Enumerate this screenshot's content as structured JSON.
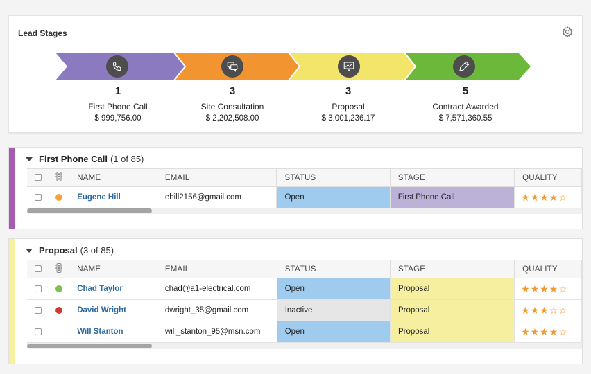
{
  "lead_stages": {
    "title": "Lead Stages",
    "stages": [
      {
        "count": "1",
        "name": "First Phone Call",
        "amount": "$ 999,756.00",
        "color": "#8b7ac0",
        "icon": "phone-icon"
      },
      {
        "count": "3",
        "name": "Site Consultation",
        "amount": "$ 2,202,508.00",
        "color": "#f29530",
        "icon": "chat-icon"
      },
      {
        "count": "3",
        "name": "Proposal",
        "amount": "$ 3,001,236.17",
        "color": "#f3e46a",
        "icon": "presentation-icon"
      },
      {
        "count": "5",
        "name": "Contract Awarded",
        "amount": "$ 7,571,360.55",
        "color": "#6cb83a",
        "icon": "pen-icon"
      }
    ]
  },
  "columns": {
    "name": "NAME",
    "email": "EMAIL",
    "status": "STATUS",
    "stage": "STAGE",
    "quality": "QUALITY"
  },
  "groups": [
    {
      "name": "First Phone Call",
      "count": "(1 of 85)",
      "color": "#a45bb0",
      "rows": [
        {
          "name": "Eugene Hill",
          "email": "ehill2156@gmail.com",
          "status": "Open",
          "stage": "First Phone Call",
          "quality": "★★★★☆",
          "dot": "#f2a43c"
        }
      ]
    },
    {
      "name": "Proposal",
      "count": "(3 of 85)",
      "color": "#f7f0a0",
      "rows": [
        {
          "name": "Chad Taylor",
          "email": "chad@a1-electrical.com",
          "status": "Open",
          "stage": "Proposal",
          "quality": "★★★★☆",
          "dot": "#7cc24a"
        },
        {
          "name": "David Wright",
          "email": "dwright_35@gmail.com",
          "status": "Inactive",
          "stage": "Proposal",
          "quality": "★★★☆☆",
          "dot": "#d13a2e"
        },
        {
          "name": "Will Stanton",
          "email": "will_stanton_95@msn.com",
          "status": "Open",
          "stage": "Proposal",
          "quality": "★★★★☆",
          "dot": ""
        }
      ]
    }
  ],
  "colors": {
    "status_open": "#9fcbee",
    "status_inactive": "#e6e6e6",
    "stage_first_phone_call": "#bcb2d8",
    "stage_proposal": "#f6efa0",
    "link": "#2e6a9e",
    "star": "#f29a2e"
  }
}
